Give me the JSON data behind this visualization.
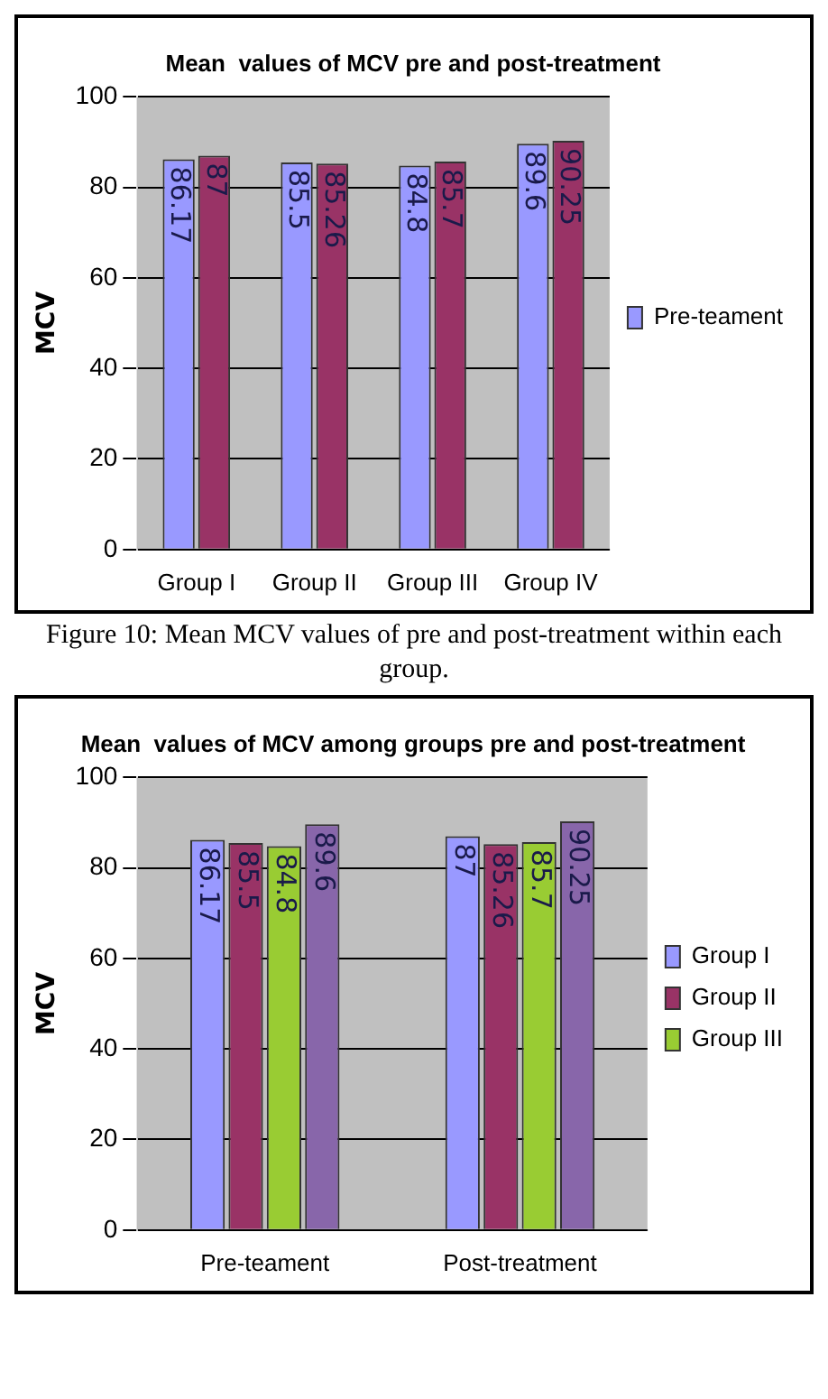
{
  "chart_data": [
    {
      "type": "bar",
      "title": "Mean  values of MCV pre and post-treatment",
      "ylabel": "MCV",
      "categories": [
        "Group I",
        "Group II",
        "Group III",
        "Group IV"
      ],
      "series": [
        {
          "name": "Pre-teament",
          "color": "#9999ff",
          "values": [
            86.17,
            85.5,
            84.8,
            89.6
          ]
        },
        {
          "color": "#993366",
          "values": [
            87,
            85.26,
            85.7,
            90.25
          ]
        }
      ],
      "ylim": [
        0,
        100
      ],
      "yticks": [
        0,
        20,
        40,
        60,
        80,
        100
      ],
      "grid": "y",
      "legend": "right",
      "data_labels": true,
      "annotations": [
        "Figure 10: Mean MCV values of pre and post-treatment within each group."
      ]
    },
    {
      "type": "bar",
      "title": "Mean  values of MCV among groups pre and post-treatment",
      "ylabel": "MCV",
      "categories": [
        "Pre-teament",
        "Post-treatment"
      ],
      "series": [
        {
          "name": "Group I",
          "color": "#9999ff",
          "values": [
            86.17,
            87
          ]
        },
        {
          "name": "Group II",
          "color": "#993366",
          "values": [
            85.5,
            85.26
          ]
        },
        {
          "name": "Group III",
          "color": "#99cc33",
          "values": [
            84.8,
            85.7
          ]
        },
        {
          "color": "#8866aa",
          "values": [
            89.6,
            90.25
          ]
        }
      ],
      "ylim": [
        0,
        100
      ],
      "yticks": [
        0,
        20,
        40,
        60,
        80,
        100
      ],
      "grid": "y",
      "legend": "right",
      "data_labels": true
    }
  ]
}
